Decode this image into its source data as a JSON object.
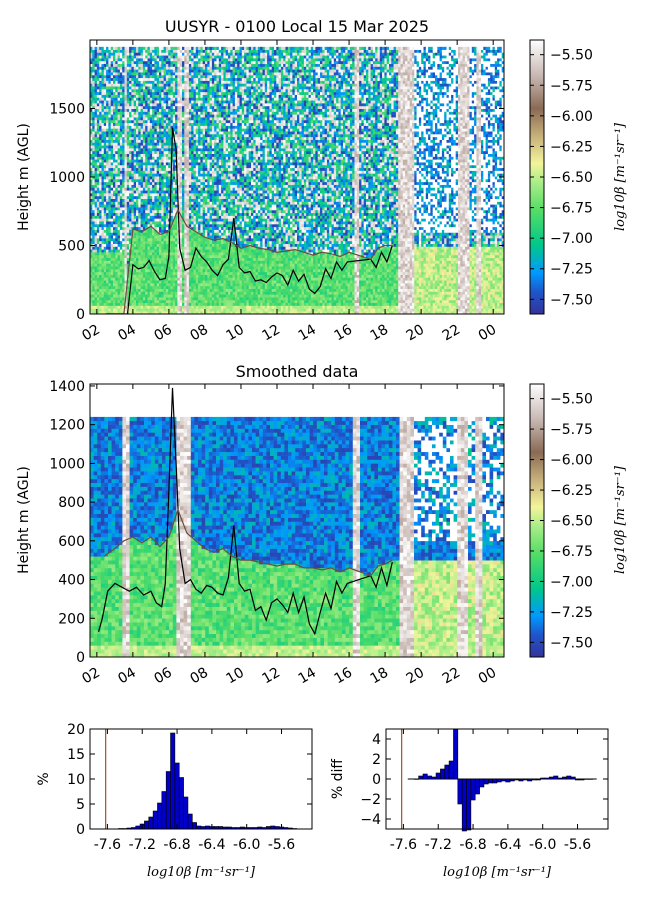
{
  "chart_data": [
    {
      "type": "heatmap",
      "title": "UUSYR - 0100 Local 15 Mar 2025",
      "ylabel": "Height m (AGL)",
      "xticks": [
        "02",
        "04",
        "06",
        "08",
        "10",
        "12",
        "14",
        "16",
        "18",
        "20",
        "22",
        "00"
      ],
      "yticks": [
        0,
        500,
        1000,
        1500
      ],
      "ylim": [
        0,
        2000
      ],
      "colorbar": {
        "label": "log10β [m⁻¹sr⁻¹]",
        "ticks": [
          "-5.50",
          "-5.75",
          "-6.00",
          "-6.25",
          "-6.50",
          "-6.75",
          "-7.00",
          "-7.25",
          "-7.50"
        ],
        "range": [
          -7.62,
          -5.38
        ]
      },
      "series": [
        {
          "x": [
            2.5,
            2.8,
            3.1,
            3.4,
            3.7,
            4.0,
            4.3,
            4.6,
            4.9,
            5.2,
            5.5,
            5.8,
            6.0,
            6.2,
            6.4,
            6.6,
            6.9,
            7.2,
            7.5,
            7.8,
            8.1,
            8.4,
            8.7,
            9.0,
            9.3,
            9.6,
            9.9,
            10.2,
            10.5,
            10.8,
            11.1,
            11.4,
            11.7,
            12.0,
            12.3,
            12.6,
            12.9,
            13.2,
            13.5,
            13.8,
            14.1,
            14.4,
            14.7,
            15.0,
            15.3,
            15.6,
            15.9,
            17.2,
            17.5,
            17.8,
            18.1,
            18.4
          ],
          "y": [
            0,
            0,
            0,
            0,
            0,
            360,
            330,
            340,
            390,
            310,
            250,
            260,
            420,
            1360,
            1200,
            480,
            320,
            340,
            480,
            420,
            380,
            320,
            280,
            360,
            400,
            700,
            340,
            300,
            310,
            240,
            250,
            230,
            270,
            300,
            280,
            210,
            320,
            240,
            290,
            180,
            150,
            200,
            330,
            260,
            380,
            320,
            380,
            400,
            340,
            450,
            380,
            500
          ]
        },
        {
          "x": [
            2.5,
            3.0,
            3.5,
            4.0,
            4.5,
            5.0,
            5.5,
            6.0,
            6.5,
            7.0,
            7.5,
            8.0,
            8.5,
            9.0,
            9.5,
            10.0,
            10.5,
            11.0,
            11.5,
            12.0,
            12.5,
            13.0,
            13.5,
            14.0,
            14.5,
            15.0,
            15.5,
            16.0,
            17.2,
            17.6,
            18.0,
            18.4
          ],
          "y": [
            0,
            0,
            0,
            620,
            600,
            640,
            580,
            600,
            760,
            640,
            600,
            560,
            540,
            550,
            520,
            480,
            500,
            480,
            470,
            450,
            460,
            470,
            450,
            430,
            450,
            440,
            420,
            450,
            400,
            480,
            500,
            500
          ]
        }
      ]
    },
    {
      "type": "heatmap",
      "title": "Smoothed data",
      "ylabel": "Height m (AGL)",
      "xticks": [
        "02",
        "04",
        "06",
        "08",
        "10",
        "12",
        "14",
        "16",
        "18",
        "20",
        "22",
        "00"
      ],
      "yticks": [
        0,
        200,
        400,
        600,
        800,
        1000,
        1200,
        1400
      ],
      "ylim": [
        0,
        1410
      ],
      "colorbar": {
        "label": "log10β [m⁻¹sr⁻¹]",
        "ticks": [
          "-5.50",
          "-5.75",
          "-6.00",
          "-6.25",
          "-6.50",
          "-6.75",
          "-7.00",
          "-7.25",
          "-7.50"
        ],
        "range": [
          -7.62,
          -5.38
        ]
      },
      "series": [
        {
          "x": [
            2.1,
            2.3,
            2.6,
            3.0,
            3.4,
            3.8,
            4.2,
            4.6,
            5.0,
            5.3,
            5.6,
            5.8,
            6.0,
            6.2,
            6.4,
            6.6,
            6.9,
            7.2,
            7.5,
            7.8,
            8.1,
            8.4,
            8.7,
            9.0,
            9.3,
            9.6,
            9.9,
            10.2,
            10.5,
            10.8,
            11.1,
            11.4,
            11.7,
            12.0,
            12.3,
            12.6,
            12.9,
            13.2,
            13.5,
            13.8,
            14.1,
            14.4,
            14.7,
            15.0,
            15.3,
            15.6,
            15.9,
            17.2,
            17.5,
            17.8,
            18.1,
            18.4
          ],
          "y": [
            130,
            200,
            340,
            380,
            360,
            340,
            360,
            320,
            340,
            280,
            260,
            380,
            860,
            1390,
            1000,
            560,
            380,
            400,
            350,
            330,
            370,
            360,
            330,
            320,
            410,
            680,
            380,
            340,
            350,
            240,
            260,
            190,
            280,
            300,
            270,
            230,
            330,
            230,
            310,
            170,
            120,
            230,
            330,
            250,
            390,
            330,
            380,
            420,
            360,
            460,
            370,
            490
          ]
        },
        {
          "x": [
            2.4,
            3.0,
            3.5,
            4.0,
            4.5,
            5.0,
            5.5,
            6.0,
            6.5,
            7.0,
            7.5,
            8.0,
            8.5,
            9.0,
            9.5,
            10.0,
            10.5,
            11.0,
            11.5,
            12.0,
            12.5,
            13.0,
            13.5,
            14.0,
            14.5,
            15.0,
            15.5,
            16.0,
            17.2,
            17.6,
            18.0,
            18.4
          ],
          "y": [
            520,
            560,
            600,
            620,
            590,
            620,
            570,
            620,
            760,
            640,
            600,
            560,
            540,
            560,
            520,
            500,
            500,
            490,
            480,
            470,
            480,
            480,
            460,
            460,
            450,
            460,
            440,
            460,
            420,
            470,
            480,
            500
          ]
        }
      ]
    },
    {
      "type": "bar",
      "ylabel": "%",
      "xlabel": "log10β [m⁻¹sr⁻¹]",
      "xticks": [
        "-7.6",
        "-7.2",
        "-6.8",
        "-6.4",
        "-6.0",
        "-5.6"
      ],
      "yticks": [
        0,
        5,
        10,
        15,
        20
      ],
      "xlim": [
        -7.8,
        -5.25
      ],
      "ylim": [
        0,
        20
      ],
      "marker_x": -7.62,
      "bin_width": 0.05,
      "x": [
        -7.45,
        -7.4,
        -7.35,
        -7.3,
        -7.25,
        -7.2,
        -7.15,
        -7.1,
        -7.05,
        -7.0,
        -6.95,
        -6.9,
        -6.85,
        -6.8,
        -6.75,
        -6.7,
        -6.65,
        -6.6,
        -6.55,
        -6.5,
        -6.45,
        -6.4,
        -6.35,
        -6.3,
        -6.25,
        -6.2,
        -6.15,
        -6.1,
        -6.05,
        -6.0,
        -5.95,
        -5.9,
        -5.85,
        -5.8,
        -5.75,
        -5.7,
        -5.65,
        -5.6,
        -5.55,
        -5.5,
        -5.45
      ],
      "values": [
        0.1,
        0.1,
        0.2,
        0.3,
        0.6,
        1.0,
        1.6,
        2.4,
        3.6,
        5.2,
        7.5,
        11.5,
        19.2,
        13.2,
        10.3,
        6.4,
        3.0,
        1.3,
        0.6,
        0.5,
        0.6,
        0.5,
        0.5,
        0.5,
        0.4,
        0.4,
        0.3,
        0.3,
        0.4,
        0.3,
        0.3,
        0.3,
        0.4,
        0.3,
        0.5,
        0.6,
        0.5,
        0.4,
        0.3,
        0.2,
        0.1
      ]
    },
    {
      "type": "bar",
      "ylabel": "% diff",
      "xlabel": "log10β [m⁻¹sr⁻¹]",
      "xticks": [
        "-7.6",
        "-7.2",
        "-6.8",
        "-6.4",
        "-6.0",
        "-5.6"
      ],
      "yticks": [
        -4,
        -2,
        0,
        2,
        4
      ],
      "xlim": [
        -7.8,
        -5.25
      ],
      "ylim": [
        -5,
        5
      ],
      "marker_x": -7.62,
      "bin_width": 0.05,
      "x": [
        -7.45,
        -7.4,
        -7.35,
        -7.3,
        -7.25,
        -7.2,
        -7.15,
        -7.1,
        -7.05,
        -7.0,
        -6.95,
        -6.9,
        -6.85,
        -6.8,
        -6.75,
        -6.7,
        -6.65,
        -6.6,
        -6.55,
        -6.5,
        -6.45,
        -6.4,
        -6.35,
        -6.3,
        -6.25,
        -6.2,
        -6.15,
        -6.1,
        -6.05,
        -6.0,
        -5.95,
        -5.9,
        -5.85,
        -5.8,
        -5.75,
        -5.7,
        -5.65,
        -5.6,
        -5.55,
        -5.5,
        -5.45
      ],
      "values": [
        0.0,
        0.3,
        0.5,
        0.3,
        0.2,
        0.6,
        1.0,
        1.4,
        1.8,
        5.0,
        -2.5,
        -5.2,
        -5.1,
        -2.1,
        -1.5,
        -0.8,
        -0.5,
        -0.4,
        -0.4,
        -0.3,
        -0.2,
        -0.3,
        -0.2,
        -0.1,
        -0.2,
        -0.1,
        -0.2,
        -0.1,
        -0.1,
        0.1,
        0.1,
        0.2,
        0.3,
        0.1,
        0.2,
        0.3,
        0.2,
        -0.1,
        -0.1,
        0.0,
        0.0
      ]
    }
  ]
}
